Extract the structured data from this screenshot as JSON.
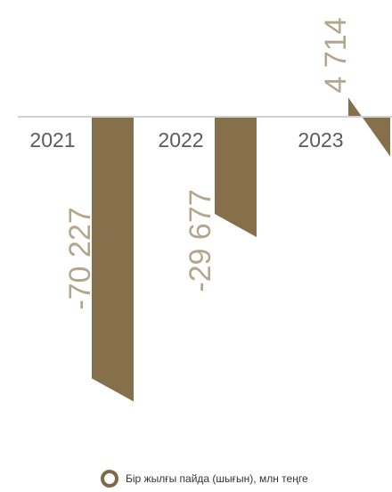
{
  "chart_data": {
    "type": "bar",
    "categories": [
      "2021",
      "2022",
      "2023"
    ],
    "values": [
      -70227,
      -29677,
      4714
    ],
    "value_labels": [
      "-70 227",
      "-29 677",
      "4 714"
    ],
    "series": [
      {
        "name": "Бір жылғы пайда (шығын), млн теңге",
        "values": [
          -70227,
          -29677,
          4714
        ]
      }
    ],
    "ylim": [
      -75000,
      10000
    ],
    "grid": false,
    "legend_position": "bottom-center"
  },
  "colors": {
    "bar": "#85704b",
    "baseline": "#d2d2d2",
    "value_label": "#b3a68d",
    "year_label": "#5b5b5b",
    "legend_marker": "#7e6a4a"
  }
}
